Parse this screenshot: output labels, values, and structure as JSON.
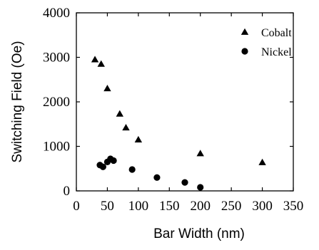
{
  "chart_data": {
    "type": "scatter",
    "xlabel": "Bar Width (nm)",
    "ylabel": "Switching Field (Oe)",
    "xlim": [
      0,
      350
    ],
    "ylim": [
      0,
      4000
    ],
    "xticks": [
      0,
      50,
      100,
      150,
      200,
      250,
      300,
      350
    ],
    "yticks": [
      0,
      1000,
      2000,
      3000,
      4000
    ],
    "xtick_labels": [
      "0",
      "50",
      "100",
      "150",
      "200",
      "250",
      "300",
      "350"
    ],
    "ytick_labels": [
      "0",
      "1000",
      "2000",
      "3000",
      "4000"
    ],
    "legend_position": "top-right",
    "grid": false,
    "series": [
      {
        "name": "Cobalt",
        "marker": "triangle",
        "color": "#000000",
        "points": [
          {
            "x": 30,
            "y": 2950
          },
          {
            "x": 40,
            "y": 2850
          },
          {
            "x": 50,
            "y": 2300
          },
          {
            "x": 70,
            "y": 1730
          },
          {
            "x": 80,
            "y": 1420
          },
          {
            "x": 100,
            "y": 1150
          },
          {
            "x": 200,
            "y": 840
          },
          {
            "x": 300,
            "y": 640
          }
        ]
      },
      {
        "name": "Nickel",
        "marker": "circle",
        "color": "#000000",
        "points": [
          {
            "x": 38,
            "y": 580
          },
          {
            "x": 43,
            "y": 540
          },
          {
            "x": 50,
            "y": 650
          },
          {
            "x": 55,
            "y": 720
          },
          {
            "x": 60,
            "y": 680
          },
          {
            "x": 90,
            "y": 480
          },
          {
            "x": 130,
            "y": 300
          },
          {
            "x": 175,
            "y": 190
          },
          {
            "x": 200,
            "y": 80
          }
        ]
      }
    ]
  }
}
